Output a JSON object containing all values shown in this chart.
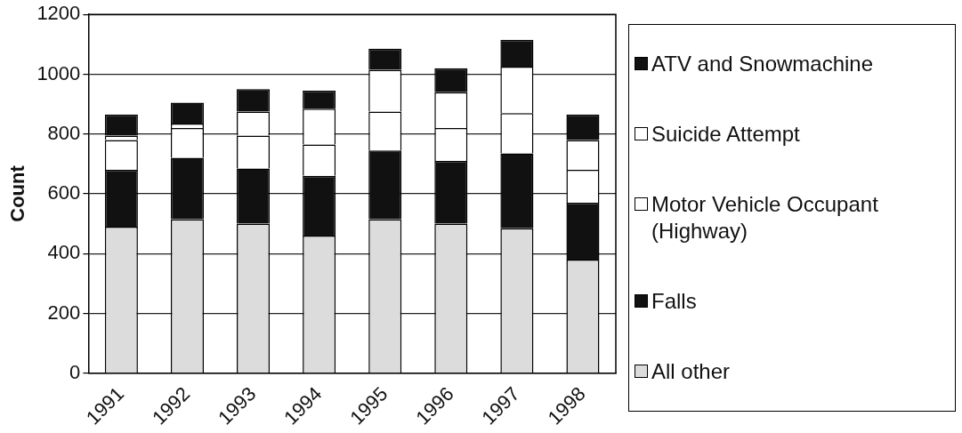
{
  "chart_data": {
    "type": "bar",
    "stacked": true,
    "ylabel": "Count",
    "categories": [
      "1991",
      "1992",
      "1993",
      "1994",
      "1995",
      "1996",
      "1997",
      "1998"
    ],
    "series": [
      {
        "name": "All other",
        "color": "#dcdcdc",
        "values": [
          490,
          515,
          500,
          460,
          515,
          500,
          485,
          380
        ]
      },
      {
        "name": "Falls",
        "color": "#111111",
        "values": [
          190,
          205,
          185,
          200,
          230,
          210,
          250,
          190
        ]
      },
      {
        "name": "Motor Vehicle Occupant (Highway)",
        "color": "#ffffff",
        "values": [
          100,
          100,
          110,
          105,
          130,
          110,
          135,
          110
        ]
      },
      {
        "name": "Suicide Attempt",
        "color": "#ffffff",
        "values": [
          15,
          15,
          80,
          120,
          140,
          120,
          155,
          100
        ]
      },
      {
        "name": "ATV and Snowmachine",
        "color": "#111111",
        "values": [
          70,
          70,
          75,
          60,
          70,
          80,
          90,
          85
        ]
      }
    ],
    "ylim": [
      0,
      1200
    ],
    "yticks": [
      0,
      200,
      400,
      600,
      800,
      1000,
      1200
    ],
    "grid": "y",
    "legend": "right"
  }
}
